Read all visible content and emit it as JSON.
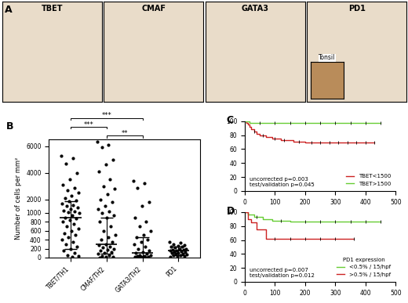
{
  "panel_a": {
    "panel": "A",
    "images": [
      {
        "label": "TBET"
      },
      {
        "label": "CMAF"
      },
      {
        "label": "GATA3"
      },
      {
        "label": "PD1",
        "inset": "Tonsil"
      }
    ]
  },
  "chart_data": [
    {
      "panel": "B",
      "type": "dot",
      "categories": [
        "TBET/TH1",
        "CMAF/TH2",
        "GATA3/TH2",
        "PD1"
      ],
      "y_label": "Number of cells per mm²",
      "ylim": [
        0,
        6500
      ],
      "yticks": [
        0,
        200,
        400,
        600,
        800,
        1000,
        2000,
        4000,
        6000
      ],
      "values": [
        [
          5300,
          5100,
          4700,
          4000,
          3500,
          3100,
          2900,
          2700,
          2500,
          2300,
          2100,
          1950,
          1850,
          1700,
          1600,
          1500,
          1400,
          1300,
          1200,
          1100,
          1050,
          1000,
          950,
          900,
          880,
          850,
          800,
          750,
          700,
          650,
          600,
          550,
          500,
          450,
          400,
          350,
          300,
          250,
          200,
          150,
          100,
          60,
          30,
          10
        ],
        [
          6300,
          6100,
          5900,
          5000,
          4600,
          4100,
          3500,
          3000,
          2800,
          2400,
          2000,
          1800,
          1500,
          1300,
          1100,
          1000,
          950,
          900,
          800,
          700,
          600,
          500,
          450,
          400,
          350,
          300,
          280,
          250,
          220,
          200,
          180,
          150,
          120,
          100,
          80,
          60,
          40,
          20,
          10,
          5
        ],
        [
          3400,
          3200,
          2900,
          1800,
          1500,
          900,
          800,
          700,
          600,
          500,
          450,
          400,
          350,
          300,
          250,
          200,
          150,
          120,
          100,
          80,
          60,
          50,
          40,
          30,
          20,
          15,
          10,
          5
        ],
        [
          350,
          330,
          300,
          280,
          260,
          250,
          240,
          220,
          200,
          190,
          180,
          170,
          160,
          150,
          140,
          130,
          120,
          110,
          100,
          90,
          80,
          70,
          60,
          50,
          40,
          30,
          20
        ]
      ],
      "medians": [
        900,
        300,
        100,
        150
      ],
      "ranges": [
        [
          200,
          1900
        ],
        [
          80,
          900
        ],
        [
          20,
          450
        ],
        [
          60,
          250
        ]
      ],
      "color": "#000000",
      "annotations": [
        {
          "text": "**",
          "from": "CMAF/TH2",
          "to": "GATA3/TH2"
        },
        {
          "text": "***",
          "from": "TBET/TH1",
          "to": "CMAF/TH2"
        },
        {
          "text": "***",
          "from": "TBET/TH1",
          "to": "GATA3/TH2"
        }
      ]
    },
    {
      "panel": "C",
      "type": "survival",
      "xlim": [
        0,
        500
      ],
      "xticks": [
        0,
        100,
        200,
        300,
        400,
        500
      ],
      "ylim": [
        0,
        100
      ],
      "yticks": [
        0,
        20,
        40,
        60,
        80,
        100
      ],
      "legend": "lower right",
      "annotations": [
        "uncorrected p=0.003",
        "test/validation p=0.045"
      ],
      "series": [
        {
          "name": "TBET<1500",
          "color": "#cc2222",
          "x": [
            0,
            5,
            10,
            15,
            20,
            30,
            40,
            50,
            70,
            90,
            120,
            160,
            200,
            430
          ],
          "values": [
            100,
            97,
            95,
            92,
            88,
            85,
            82,
            80,
            77,
            75,
            73,
            71,
            70,
            70
          ],
          "censored": [
            30,
            60,
            100,
            130,
            180,
            220,
            250,
            280,
            310,
            340,
            370,
            400,
            430
          ]
        },
        {
          "name": "TBET>1500",
          "color": "#66cc33",
          "x": [
            0,
            15,
            450
          ],
          "values": [
            100,
            97,
            97
          ],
          "censored": [
            50,
            100,
            150,
            200,
            250,
            300,
            350,
            400,
            450
          ]
        }
      ]
    },
    {
      "panel": "D",
      "type": "survival",
      "xlim": [
        0,
        500
      ],
      "xticks": [
        0,
        100,
        200,
        300,
        400,
        500
      ],
      "ylim": [
        0,
        100
      ],
      "yticks": [
        0,
        20,
        40,
        60,
        80,
        100
      ],
      "legend": "lower right",
      "legend_title": "PD1 expression",
      "annotations": [
        "uncorrected p=0.007",
        "test/validation p=0.012"
      ],
      "series": [
        {
          "name": "<0.5% / 15/hpf",
          "color": "#66cc33",
          "x": [
            0,
            10,
            30,
            60,
            90,
            150,
            450
          ],
          "values": [
            100,
            97,
            93,
            90,
            88,
            86,
            86
          ],
          "censored": [
            40,
            120,
            200,
            250,
            300,
            350,
            400,
            450
          ]
        },
        {
          "name": ">0.5% / 15/hpf",
          "color": "#cc2222",
          "x": [
            0,
            10,
            20,
            40,
            70,
            360
          ],
          "values": [
            100,
            90,
            85,
            75,
            62,
            62
          ],
          "censored": [
            100,
            150,
            200,
            250,
            300,
            360
          ]
        }
      ]
    }
  ]
}
